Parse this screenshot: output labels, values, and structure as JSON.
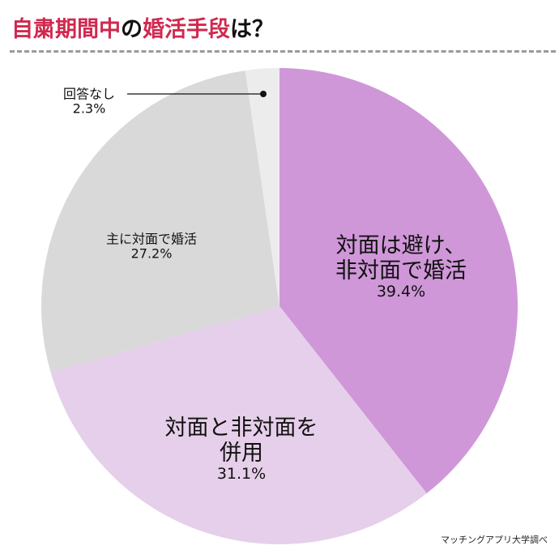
{
  "title": {
    "parts": [
      "自粛期間中",
      "の",
      "婚活手段",
      "は？"
    ],
    "accent": "#d0294f"
  },
  "source": "マッチングアプリ大学調べ",
  "chart_data": {
    "type": "pie",
    "title": "自粛期間中の婚活手段は？",
    "start": "12 o'clock, clockwise",
    "slices": [
      {
        "label": "対面は避け、非対面で婚活",
        "value": 39.4,
        "pct_label": "39.4%",
        "color": "#cf97d8"
      },
      {
        "label": "対面と非対面を併用",
        "value": 31.1,
        "pct_label": "31.1%",
        "color": "#e6cfea"
      },
      {
        "label": "主に対面で婚活",
        "value": 27.2,
        "pct_label": "27.2%",
        "color": "#d9d9d9"
      },
      {
        "label": "回答なし",
        "value": 2.3,
        "pct_label": "2.3%",
        "color": "#ececec"
      }
    ],
    "label_lines": [
      [
        "対面は避け、",
        "非対面で婚活"
      ],
      [
        "対面と非対面を",
        "併用"
      ],
      [
        "主に対面で婚活"
      ],
      [
        "回答なし"
      ]
    ]
  }
}
